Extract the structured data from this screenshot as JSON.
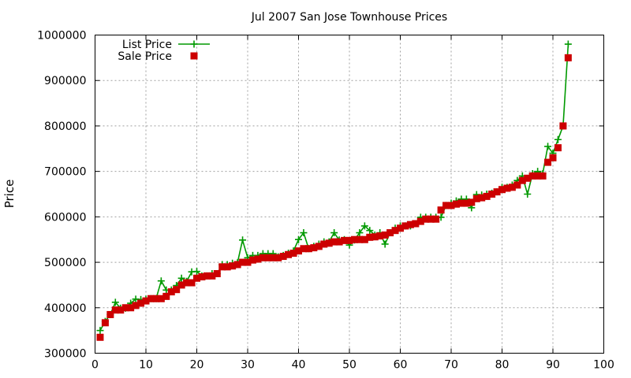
{
  "chart_data": {
    "type": "line",
    "title": "Jul 2007 San Jose Townhouse Prices",
    "xlabel": "",
    "ylabel": "Price",
    "xlim": [
      0,
      100
    ],
    "ylim": [
      300000,
      1000000
    ],
    "x_ticks": [
      "0",
      "10",
      "20",
      "30",
      "40",
      "50",
      "60",
      "70",
      "80",
      "90",
      "100"
    ],
    "y_ticks": [
      "300000",
      "400000",
      "500000",
      "600000",
      "700000",
      "800000",
      "900000",
      "1000000"
    ],
    "grid": true,
    "legend_position": "top-left",
    "series": [
      {
        "name": "List Price",
        "style": "line+cross",
        "color": "#009900",
        "values": [
          350000,
          370000,
          385000,
          412000,
          399000,
          399000,
          410000,
          419000,
          418000,
          419000,
          420000,
          420000,
          459000,
          439000,
          439000,
          449000,
          465000,
          458000,
          479000,
          480000,
          470000,
          470000,
          475000,
          475000,
          495000,
          495000,
          498000,
          499000,
          549000,
          510000,
          515000,
          515000,
          519000,
          519000,
          519000,
          512000,
          515000,
          520000,
          525000,
          550000,
          565000,
          530000,
          535000,
          540000,
          545000,
          545000,
          565000,
          549000,
          550000,
          538000,
          549000,
          565000,
          580000,
          570000,
          560000,
          565000,
          540000,
          565000,
          575000,
          580000,
          580000,
          580000,
          585000,
          599000,
          599000,
          599000,
          599000,
          599000,
          625000,
          630000,
          635000,
          639000,
          639000,
          620000,
          649000,
          648000,
          650000,
          652000,
          655000,
          665000,
          665000,
          670000,
          680000,
          690000,
          650000,
          695000,
          700000,
          695000,
          755000,
          740000,
          770000,
          800000,
          980000
        ]
      },
      {
        "name": "Sale Price",
        "style": "square",
        "color": "#cc0000",
        "values": [
          335000,
          367000,
          385000,
          395000,
          395000,
          400000,
          400000,
          405000,
          410000,
          415000,
          420000,
          420000,
          420000,
          425000,
          435000,
          440000,
          450000,
          455000,
          455000,
          465000,
          468000,
          470000,
          470000,
          475000,
          490000,
          490000,
          492000,
          495000,
          500000,
          500000,
          505000,
          507000,
          510000,
          510000,
          510000,
          510000,
          513000,
          517000,
          520000,
          525000,
          530000,
          530000,
          532000,
          535000,
          540000,
          542000,
          545000,
          545000,
          548000,
          548000,
          550000,
          550000,
          550000,
          555000,
          556000,
          558000,
          560000,
          565000,
          570000,
          575000,
          580000,
          583000,
          585000,
          590000,
          595000,
          595000,
          595000,
          615000,
          625000,
          625000,
          628000,
          630000,
          630000,
          632000,
          640000,
          642000,
          645000,
          650000,
          655000,
          660000,
          663000,
          665000,
          670000,
          680000,
          685000,
          690000,
          690000,
          690000,
          720000,
          730000,
          752000,
          800000,
          950000
        ]
      }
    ]
  }
}
